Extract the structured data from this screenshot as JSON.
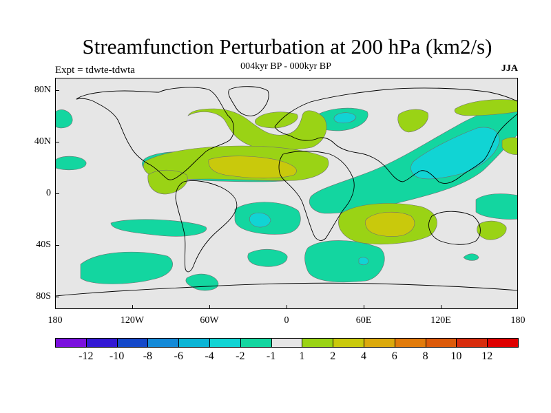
{
  "title": "Streamfunction Perturbation at 200 hPa (km2/s)",
  "subtitle": "004kyr BP - 000kyr BP",
  "left_label": "Expt = tdwte-tdwta",
  "season": "JJA",
  "axes": {
    "y_labels": [
      "80N",
      "40N",
      "0",
      "40S",
      "80S"
    ],
    "x_labels": [
      "180",
      "120W",
      "60W",
      "0",
      "60E",
      "120E",
      "180"
    ]
  },
  "colorbar": {
    "colors": [
      "#7a10dd",
      "#3318d4",
      "#1448c9",
      "#148ad8",
      "#0bb5d6",
      "#11d4d4",
      "#13d6a0",
      "#e6e6e6",
      "#9ad315",
      "#c9c90c",
      "#dba90c",
      "#e17b0b",
      "#dc5a09",
      "#d72c0d",
      "#df0000"
    ],
    "labels": [
      "-12",
      "-10",
      "-8",
      "-6",
      "-4",
      "-2",
      "-1",
      "1",
      "2",
      "4",
      "6",
      "8",
      "10",
      "12"
    ]
  },
  "colors": {
    "background": "#e6e6e6",
    "level_neg_1": "#13d6a0",
    "level_neg_2": "#11d4d4",
    "level_pos_1": "#9ad315",
    "level_pos_2": "#c9c90c"
  }
}
